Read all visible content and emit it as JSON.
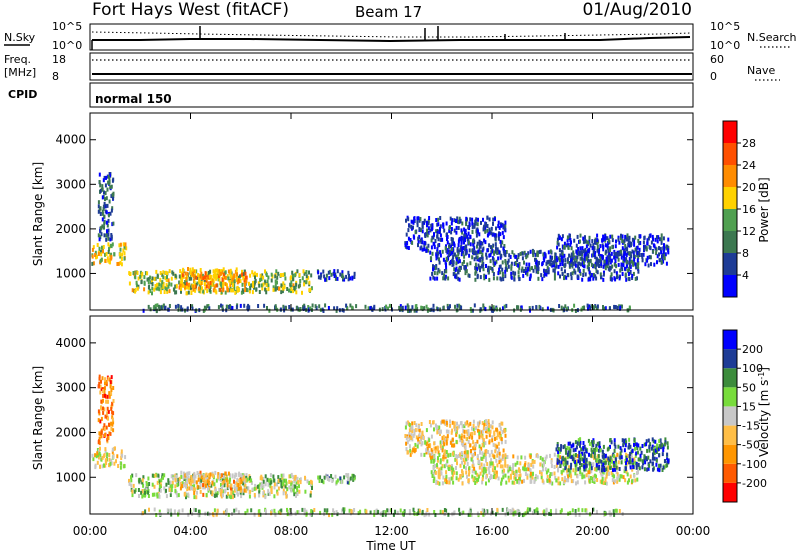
{
  "header": {
    "station": "Fort Hays West (fitACF)",
    "beam": "Beam 17",
    "date": "01/Aug/2010"
  },
  "sky_panel": {
    "left_label": "N.Sky",
    "right_label": "N.Search",
    "ticks_left": [
      "10^5",
      "10^0"
    ],
    "ticks_right": [
      "10^5",
      "10^0"
    ]
  },
  "freq_panel": {
    "label_line1": "Freq.",
    "label_line2": "[MHz]",
    "ticks_left": [
      "18",
      "8"
    ],
    "right_label": "Nave",
    "ticks_right": [
      "60",
      "0"
    ]
  },
  "cpid_panel": {
    "label": "CPID",
    "mode": "normal 150"
  },
  "time_axis": {
    "label": "Time UT",
    "ticks": [
      "00:00",
      "04:00",
      "08:00",
      "12:00",
      "16:00",
      "20:00",
      "00:00"
    ]
  },
  "colors": {
    "power": [
      "#0000ff",
      "#1e3c96",
      "#3c7850",
      "#50a050",
      "#ffd200",
      "#ff8c00",
      "#ff5000",
      "#ff0000"
    ],
    "velocity": [
      "#ff0000",
      "#ff5a00",
      "#ff9600",
      "#ffbe46",
      "#c8c8c8",
      "#78dc3c",
      "#3c8c3c",
      "#1e3c96",
      "#0000ff"
    ]
  },
  "chart_data": [
    {
      "type": "heatmap",
      "name": "power",
      "ylabel": "Slant Range [km]",
      "xlabel": "",
      "y_ticks": [
        "1000",
        "2000",
        "3000",
        "4000"
      ],
      "ylim": [
        180,
        4600
      ],
      "xlim_hours": [
        0,
        24
      ],
      "colorbar": {
        "label": "Power [dB]",
        "ticks": [
          "4",
          "8",
          "12",
          "16",
          "20",
          "24",
          "28"
        ],
        "range": [
          0,
          30
        ]
      },
      "regions": [
        {
          "t0": 0.05,
          "t1": 1.4,
          "r0": 1250,
          "r1": 1700,
          "value": 16
        },
        {
          "t0": 0.3,
          "t1": 0.9,
          "r0": 1800,
          "r1": 3300,
          "value": 6
        },
        {
          "t0": 1.5,
          "t1": 8.8,
          "r0": 600,
          "r1": 1100,
          "value": 14
        },
        {
          "t0": 3.5,
          "t1": 6.2,
          "r0": 650,
          "r1": 1150,
          "value": 20
        },
        {
          "t0": 2.0,
          "t1": 21.5,
          "r0": 200,
          "r1": 330,
          "value": 8
        },
        {
          "t0": 9.0,
          "t1": 10.5,
          "r0": 900,
          "r1": 1100,
          "value": 7
        },
        {
          "t0": 13.5,
          "t1": 21.8,
          "r0": 900,
          "r1": 1550,
          "value": 6
        },
        {
          "t0": 18.5,
          "t1": 23.0,
          "r0": 1200,
          "r1": 1900,
          "value": 5
        },
        {
          "t0": 12.5,
          "t1": 16.5,
          "r0": 1500,
          "r1": 2300,
          "value": 4
        }
      ]
    },
    {
      "type": "heatmap",
      "name": "velocity",
      "ylabel": "Slant Range [km]",
      "xlabel": "Time UT",
      "y_ticks": [
        "1000",
        "2000",
        "3000",
        "4000"
      ],
      "ylim": [
        180,
        4600
      ],
      "xlim_hours": [
        0,
        24
      ],
      "colorbar": {
        "label": "Velocity [m s",
        "label_sup": "-1",
        "label_end": "]",
        "ticks": [
          "200",
          "100",
          "50",
          "15",
          "-15",
          "-50",
          "-100",
          "-200"
        ],
        "range": [
          -250,
          250
        ]
      },
      "regions": [
        {
          "t0": 0.05,
          "t1": 1.4,
          "r0": 1250,
          "r1": 1700,
          "value": -5
        },
        {
          "t0": 0.3,
          "t1": 0.9,
          "r0": 1800,
          "r1": 3300,
          "value": -120
        },
        {
          "t0": 1.5,
          "t1": 8.8,
          "r0": 600,
          "r1": 1100,
          "value": 30
        },
        {
          "t0": 3.5,
          "t1": 6.2,
          "r0": 650,
          "r1": 1150,
          "value": -60
        },
        {
          "t0": 2.0,
          "t1": 21.5,
          "r0": 200,
          "r1": 330,
          "value": 40
        },
        {
          "t0": 9.0,
          "t1": 10.5,
          "r0": 900,
          "r1": 1100,
          "value": 70
        },
        {
          "t0": 13.5,
          "t1": 21.8,
          "r0": 900,
          "r1": 1550,
          "value": -5
        },
        {
          "t0": 18.5,
          "t1": 23.0,
          "r0": 1200,
          "r1": 1900,
          "value": 150
        },
        {
          "t0": 12.5,
          "t1": 16.5,
          "r0": 1500,
          "r1": 2300,
          "value": -40
        }
      ]
    }
  ]
}
